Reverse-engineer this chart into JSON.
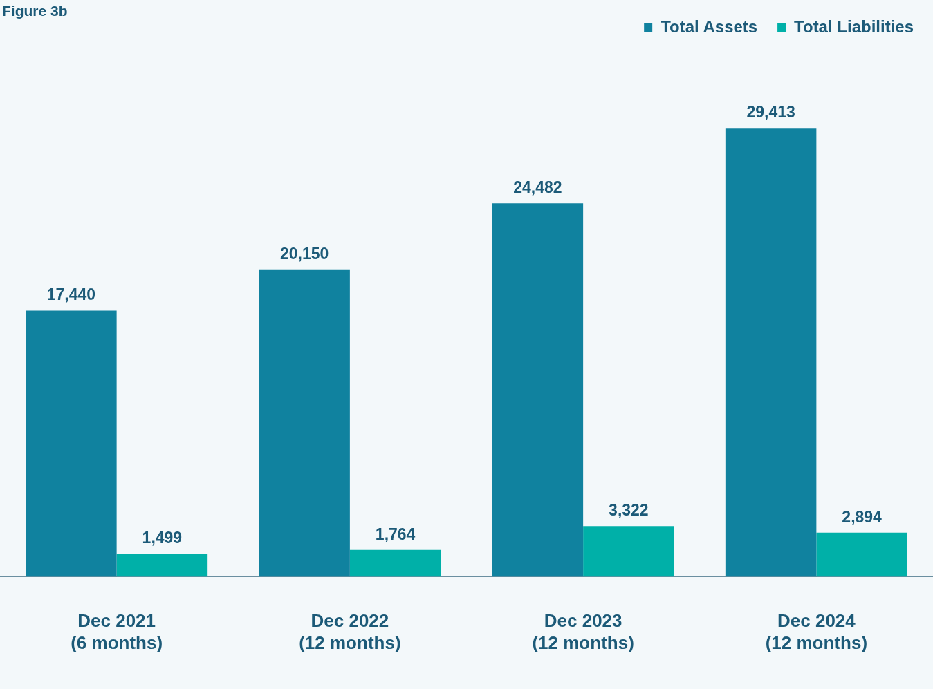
{
  "chart_data": {
    "type": "bar",
    "title": "Figure 3b",
    "categories": [
      "Dec 2021\n(6 months)",
      "Dec 2022\n(12 months)",
      "Dec 2023\n(12 months)",
      "Dec 2024\n(12 months)"
    ],
    "series": [
      {
        "name": "Total Assets",
        "color": "#10829f",
        "values": [
          17440,
          20150,
          24482,
          29413
        ],
        "value_labels": [
          "17,440",
          "20,150",
          "24,482",
          "29,413"
        ]
      },
      {
        "name": "Total Liabilities",
        "color": "#00b0a8",
        "values": [
          1499,
          1764,
          3322,
          2894
        ],
        "value_labels": [
          "1,499",
          "1,764",
          "3,322",
          "2,894"
        ]
      }
    ],
    "legend": "top right",
    "grid": false,
    "tick_labels": "x"
  }
}
